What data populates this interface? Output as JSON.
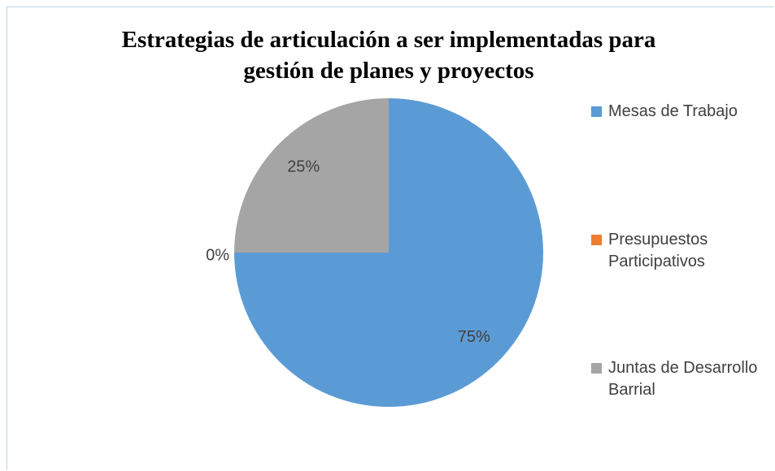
{
  "chart_data": {
    "type": "pie",
    "title": "Estrategias de articulación a ser implementadas para gestión de planes y proyectos",
    "categories": [
      "Mesas de Trabajo",
      "Presupuestos Participativos",
      "Juntas de Desarrollo Barrial"
    ],
    "values": [
      75,
      0,
      25
    ],
    "value_labels": [
      "75%",
      "0%",
      "25%"
    ],
    "colors": [
      "#5b9bd5",
      "#ed7d31",
      "#a5a5a5"
    ],
    "legend": "right"
  }
}
